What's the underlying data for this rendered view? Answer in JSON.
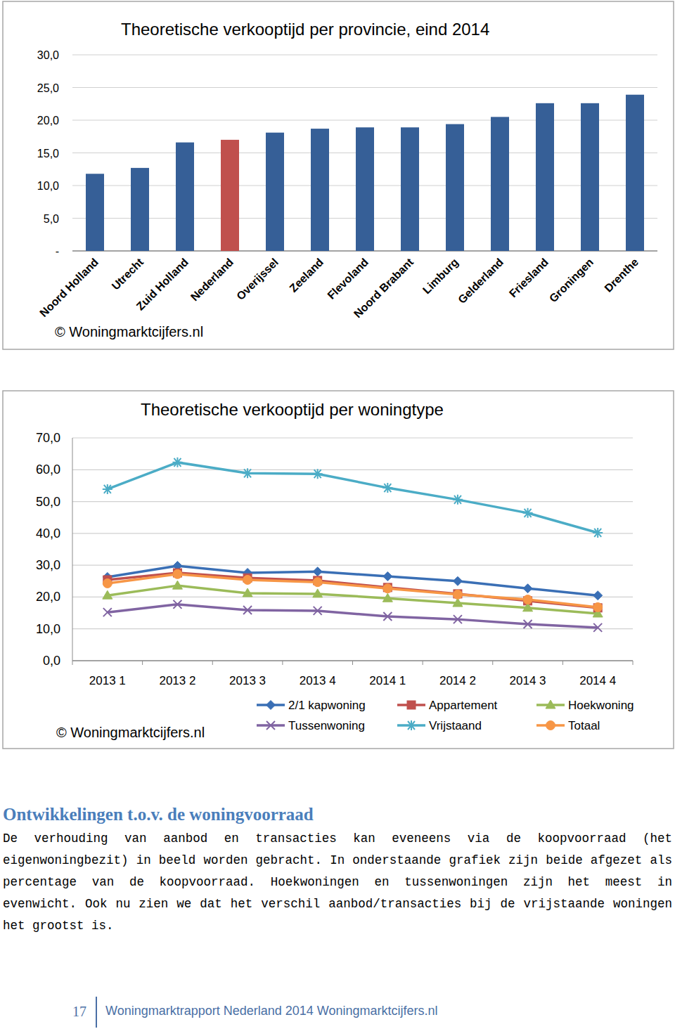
{
  "chart_data": [
    {
      "type": "bar",
      "title": "Theoretische verkooptijd per provincie, eind 2014",
      "annotation": "© Woningmarktcijfers.nl",
      "categories": [
        "Noord Holland",
        "Utrecht",
        "Zuid Holland",
        "Nederland",
        "Overijssel",
        "Zeeland",
        "Flevoland",
        "Noord Brabant",
        "Limburg",
        "Gelderland",
        "Friesland",
        "Groningen",
        "Drenthe"
      ],
      "values": [
        11.8,
        12.7,
        16.6,
        17.0,
        18.1,
        18.7,
        18.9,
        18.9,
        19.4,
        20.5,
        22.6,
        22.6,
        23.9
      ],
      "colors": [
        "#365f97",
        "#365f97",
        "#365f97",
        "#c0504d",
        "#365f97",
        "#365f97",
        "#365f97",
        "#365f97",
        "#365f97",
        "#365f97",
        "#365f97",
        "#365f97",
        "#365f97"
      ],
      "ylim": [
        0,
        30
      ],
      "yticks": [
        {
          "value": 0,
          "label": "-"
        },
        {
          "value": 5,
          "label": "5,0"
        },
        {
          "value": 10,
          "label": "10,0"
        },
        {
          "value": 15,
          "label": "15,0"
        },
        {
          "value": 20,
          "label": "20,0"
        },
        {
          "value": 25,
          "label": "25,0"
        },
        {
          "value": 30,
          "label": "30,0"
        }
      ],
      "grid": true
    },
    {
      "type": "line",
      "title": "Theoretische verkooptijd per woningtype",
      "annotation": "© Woningmarktcijfers.nl",
      "categories": [
        "2013 1",
        "2013 2",
        "2013 3",
        "2013 4",
        "2014 1",
        "2014 2",
        "2014 3",
        "2014 4"
      ],
      "series": [
        {
          "name": "2/1 kapwoning",
          "color": "#3a6fb5",
          "marker": "diamond",
          "values": [
            26.3,
            29.8,
            27.6,
            28.0,
            26.5,
            25.0,
            22.7,
            20.5
          ]
        },
        {
          "name": "Appartement",
          "color": "#c0504d",
          "marker": "square",
          "values": [
            25.4,
            27.6,
            26.0,
            25.2,
            23.0,
            21.0,
            18.8,
            16.6
          ]
        },
        {
          "name": "Hoekwoning",
          "color": "#9bbb59",
          "marker": "triangle",
          "values": [
            20.5,
            23.6,
            21.2,
            21.0,
            19.6,
            18.1,
            16.6,
            14.8
          ]
        },
        {
          "name": "Tussenwoning",
          "color": "#8064a2",
          "marker": "x",
          "values": [
            15.2,
            17.7,
            15.9,
            15.7,
            13.9,
            13.0,
            11.5,
            10.4
          ]
        },
        {
          "name": "Vrijstaand",
          "color": "#4bacc6",
          "marker": "star",
          "values": [
            53.9,
            62.3,
            58.9,
            58.7,
            54.3,
            50.6,
            46.4,
            40.2
          ]
        },
        {
          "name": "Totaal",
          "color": "#f79646",
          "marker": "circle",
          "values": [
            24.3,
            27.2,
            25.4,
            24.7,
            22.7,
            20.8,
            19.2,
            16.8
          ]
        }
      ],
      "ylim": [
        0,
        70
      ],
      "yticks": [
        {
          "value": 0,
          "label": "0,0"
        },
        {
          "value": 10,
          "label": "10,0"
        },
        {
          "value": 20,
          "label": "20,0"
        },
        {
          "value": 30,
          "label": "30,0"
        },
        {
          "value": 40,
          "label": "40,0"
        },
        {
          "value": 50,
          "label": "50,0"
        },
        {
          "value": 60,
          "label": "60,0"
        },
        {
          "value": 70,
          "label": "70,0"
        }
      ],
      "grid": true,
      "legend": "bottom"
    }
  ],
  "page": {
    "heading": "Ontwikkelingen t.o.v. de woningvoorraad",
    "paragraph": "De verhouding van aanbod en transacties kan eveneens via de koopvoorraad (het eigenwoningbezit) in beeld worden gebracht. In onderstaande grafiek zijn beide afgezet als percentage van de koopvoorraad. Hoekwoningen en tussenwoningen zijn het meest in evenwicht. Ook nu zien we dat het verschil aanbod/transacties bij de vrijstaande woningen het grootst is.",
    "page_number": "17",
    "footer": "Woningmarktrapport Nederland 2014 Woningmarktcijfers.nl"
  }
}
